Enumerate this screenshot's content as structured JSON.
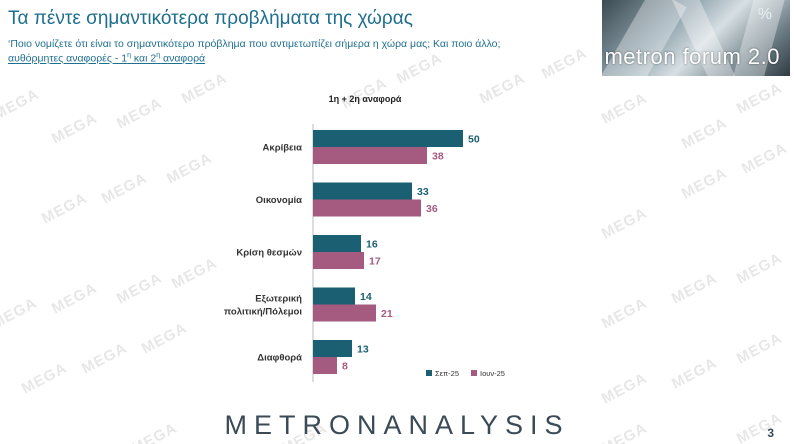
{
  "header": {
    "title": "Τα πέντε σημαντικότερα προβλήματα της χώρας",
    "subtitle": "‘Ποιο νομίζετε ότι είναι το σημαντικότερο πρόβλημα που αντιμετωπίζει σήμερα η χώρα μας; Και ποιο άλλο;",
    "subtitle2_main": "αυθόρμητες αναφορές - 1",
    "subtitle2_sup1": "η",
    "subtitle2_mid": " και 2",
    "subtitle2_sup2": "η",
    "subtitle2_end": " αναφορά"
  },
  "logo": {
    "text": "metron forum 2.0",
    "mark": "%"
  },
  "watermark_text": "MEGA",
  "footer": {
    "brand": "METRONANALYSIS",
    "page_number": "3"
  },
  "colors": {
    "series1": "#1b5f73",
    "series2": "#a55a7f",
    "title": "#1f6f8f"
  },
  "chart_data": {
    "type": "bar",
    "orientation": "horizontal",
    "title": "1η + 2η αναφορά",
    "categories": [
      "Ακρίβεια",
      "Οικονομία",
      "Κρίση θεσμών",
      "Εξωτερική πολιτική/Πόλεμοι",
      "Διαφθορά"
    ],
    "category_lines": [
      [
        "Ακρίβεια"
      ],
      [
        "Οικονομία"
      ],
      [
        "Κρίση θεσμών"
      ],
      [
        "Εξωτερική",
        "πολιτική/Πόλεμοι"
      ],
      [
        "Διαφθορά"
      ]
    ],
    "series": [
      {
        "name": "Σεπ-25",
        "values": [
          50,
          33,
          16,
          14,
          13
        ],
        "color": "#1b5f73"
      },
      {
        "name": "Ιουν-25",
        "values": [
          38,
          36,
          17,
          21,
          8
        ],
        "color": "#a55a7f"
      }
    ],
    "xlim": [
      0,
      100
    ],
    "grid": false,
    "legend": "bottom-right"
  }
}
